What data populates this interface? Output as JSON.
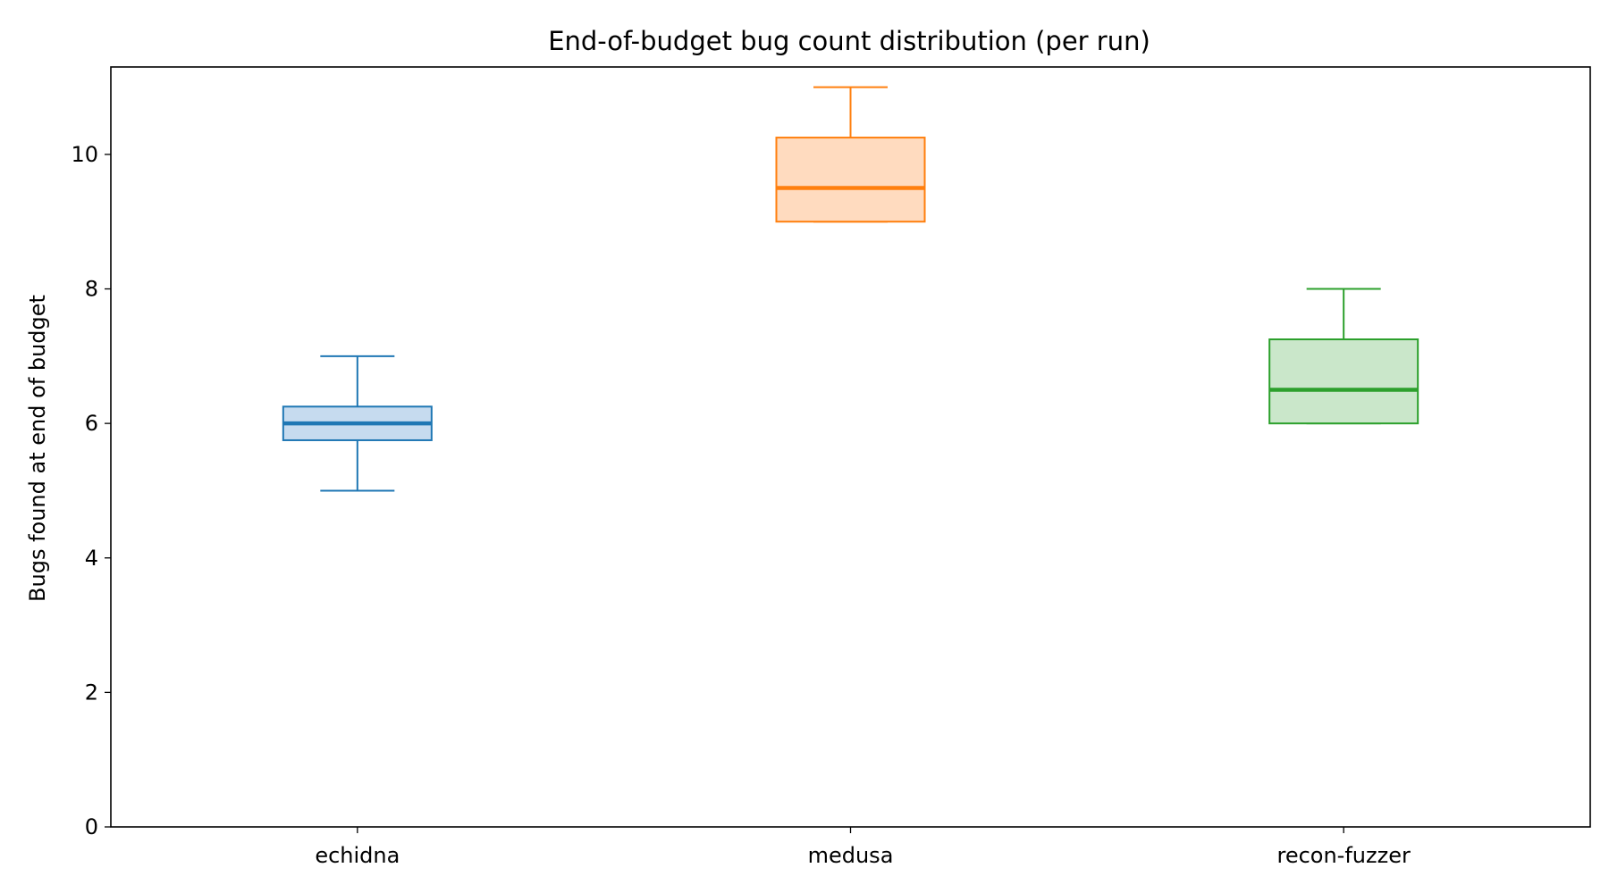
{
  "chart_data": {
    "type": "box",
    "title": "End-of-budget bug count distribution (per run)",
    "xlabel": "",
    "ylabel": "Bugs found at end of budget",
    "ylim": [
      0,
      11.3
    ],
    "yticks": [
      0,
      2,
      4,
      6,
      8,
      10
    ],
    "grid": false,
    "categories": [
      "echidna",
      "medusa",
      "recon-fuzzer"
    ],
    "boxes": [
      {
        "category": "echidna",
        "whisker_low": 5,
        "q1": 5.75,
        "median": 6,
        "q3": 6.25,
        "whisker_high": 7,
        "color": "#1f77b4",
        "fill": "#c6dbef"
      },
      {
        "category": "medusa",
        "whisker_low": 9,
        "q1": 9,
        "median": 9.5,
        "q3": 10.25,
        "whisker_high": 11,
        "color": "#ff7f0e",
        "fill": "#ffdbbf"
      },
      {
        "category": "recon-fuzzer",
        "whisker_low": 6,
        "q1": 6,
        "median": 6.5,
        "q3": 7.25,
        "whisker_high": 8,
        "color": "#2ca02c",
        "fill": "#cae7ca"
      }
    ]
  }
}
